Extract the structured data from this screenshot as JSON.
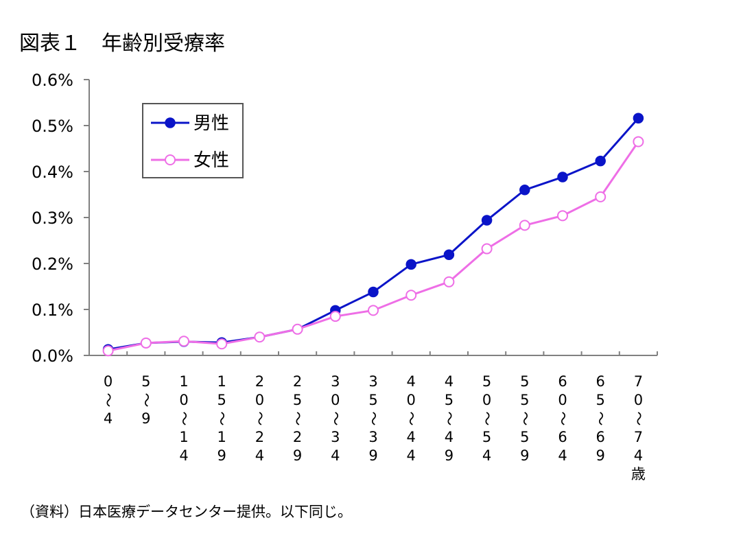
{
  "title": "図表１　年齢別受療率",
  "source": "（資料）日本医療データセンター提供。以下同じ。",
  "colors": {
    "male": "#0a14c8",
    "female": "#ee6ee6",
    "axis": "#808080"
  },
  "chart_data": {
    "type": "line",
    "title": "図表１　年齢別受療率",
    "xlabel": "",
    "ylabel": "",
    "unit_suffix": "歳",
    "ylim": [
      0,
      0.6
    ],
    "yticks": [
      "0.0%",
      "0.1%",
      "0.2%",
      "0.3%",
      "0.4%",
      "0.5%",
      "0.6%"
    ],
    "grid": false,
    "legend_position": "top-left",
    "categories": [
      "0～4",
      "5～9",
      "10～14",
      "15～19",
      "20～24",
      "25～29",
      "30～34",
      "35～39",
      "40～44",
      "45～49",
      "50～54",
      "55～59",
      "60～64",
      "65～69",
      "70～74"
    ],
    "category_chars": [
      [
        "0",
        "～",
        "4"
      ],
      [
        "5",
        "～",
        "9"
      ],
      [
        "1",
        "0",
        "～",
        "1",
        "4"
      ],
      [
        "1",
        "5",
        "～",
        "1",
        "9"
      ],
      [
        "2",
        "0",
        "～",
        "2",
        "4"
      ],
      [
        "2",
        "5",
        "～",
        "2",
        "9"
      ],
      [
        "3",
        "0",
        "～",
        "3",
        "4"
      ],
      [
        "3",
        "5",
        "～",
        "3",
        "9"
      ],
      [
        "4",
        "0",
        "～",
        "4",
        "4"
      ],
      [
        "4",
        "5",
        "～",
        "4",
        "9"
      ],
      [
        "5",
        "0",
        "～",
        "5",
        "4"
      ],
      [
        "5",
        "5",
        "～",
        "5",
        "9"
      ],
      [
        "6",
        "0",
        "～",
        "6",
        "4"
      ],
      [
        "6",
        "5",
        "～",
        "6",
        "9"
      ],
      [
        "7",
        "0",
        "～",
        "7",
        "4"
      ]
    ],
    "series": [
      {
        "name": "男性",
        "color": "#0a14c8",
        "marker": "filled-circle",
        "values": [
          0.013,
          0.027,
          0.03,
          0.028,
          0.04,
          0.057,
          0.098,
          0.138,
          0.198,
          0.219,
          0.294,
          0.36,
          0.388,
          0.423,
          0.516
        ]
      },
      {
        "name": "女性",
        "color": "#ee6ee6",
        "marker": "open-circle",
        "values": [
          0.01,
          0.027,
          0.031,
          0.025,
          0.04,
          0.057,
          0.085,
          0.098,
          0.131,
          0.16,
          0.232,
          0.283,
          0.304,
          0.345,
          0.465
        ]
      }
    ]
  }
}
